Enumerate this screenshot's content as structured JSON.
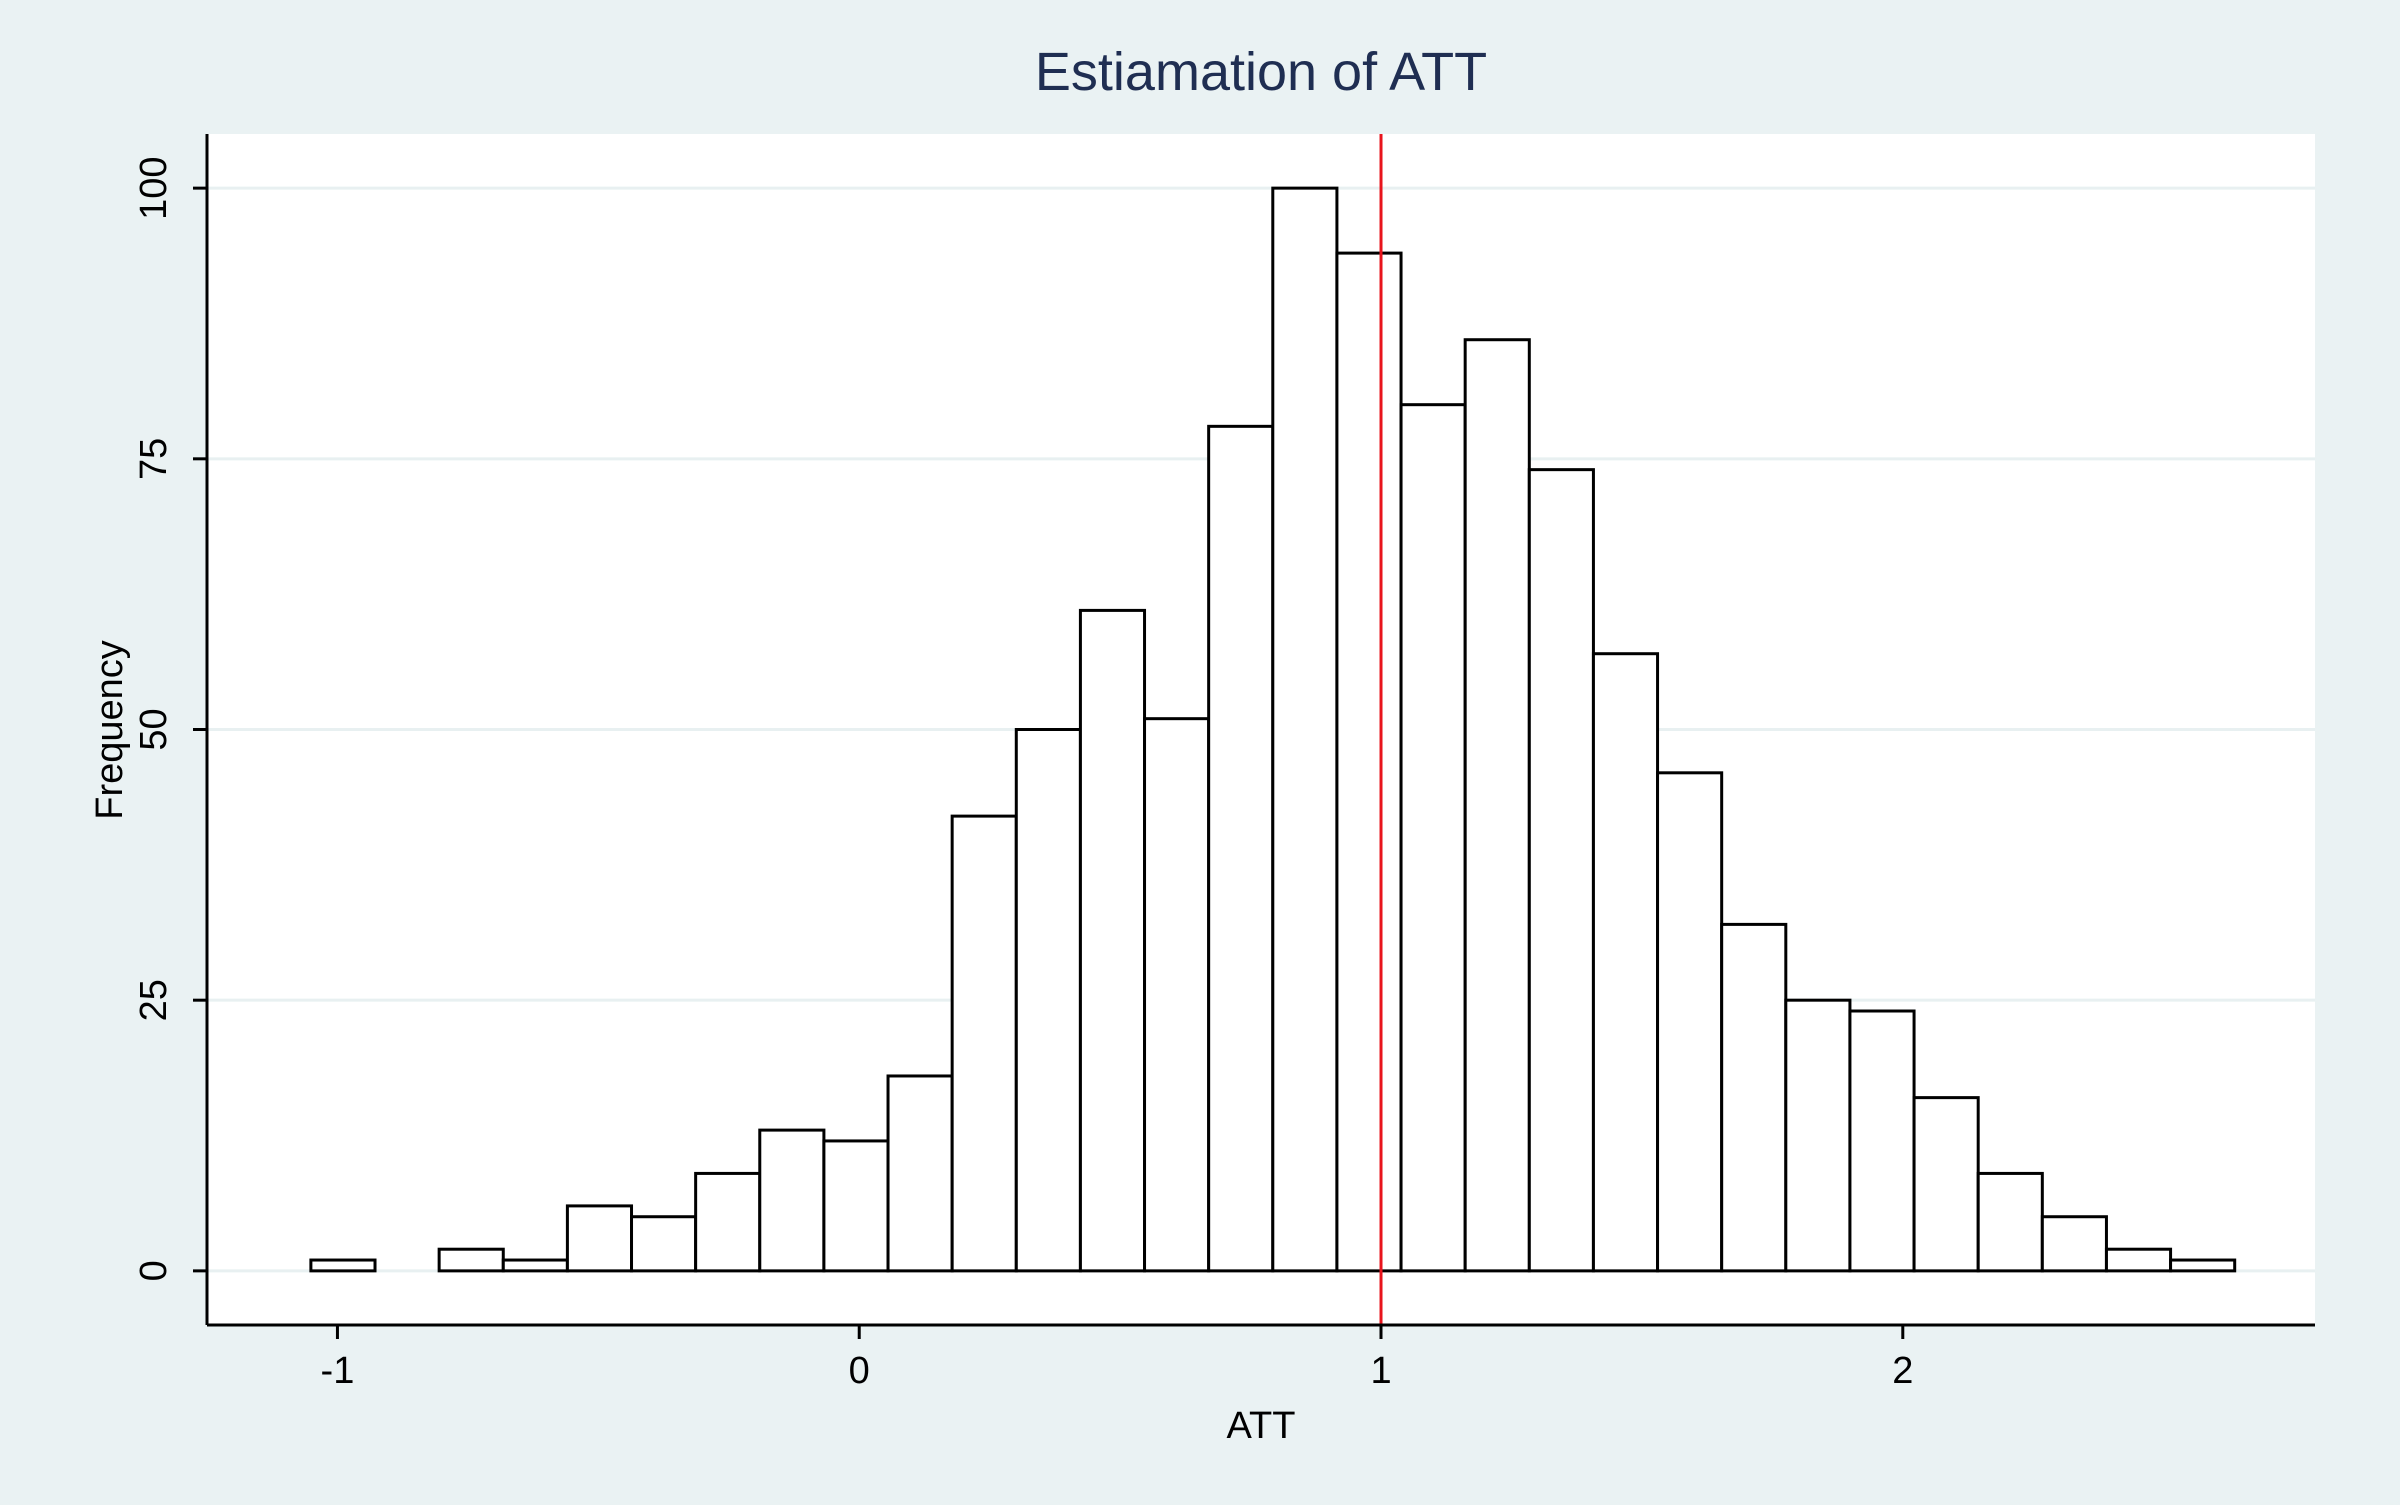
{
  "chart_data": {
    "type": "bar",
    "title": "Estiamation of ATT",
    "xlabel": "ATT",
    "ylabel": "Frequency",
    "xlim": [
      -1.25,
      2.79
    ],
    "ylim": [
      -5,
      105
    ],
    "xticks": [
      -1,
      0,
      1,
      2
    ],
    "xtick_labels": [
      "-1",
      "0",
      "1",
      "2"
    ],
    "yticks": [
      0,
      25,
      50,
      75,
      100
    ],
    "ytick_labels": [
      "0",
      "25",
      "50",
      "75",
      "100"
    ],
    "bin_start": -1.0509,
    "bin_width": 0.1229,
    "values": [
      1,
      0,
      2,
      1,
      6,
      5,
      9,
      13,
      12,
      18,
      42,
      50,
      61,
      51,
      78,
      100,
      94,
      80,
      86,
      74,
      57,
      46,
      32,
      25,
      24,
      16,
      9,
      5,
      2,
      1
    ],
    "reference_line": {
      "x": 1,
      "color": "#e8141c"
    },
    "grid": "horizontal",
    "legend": "none",
    "colors": {
      "background": "#eaf2f3",
      "plot_area": "#ffffff",
      "gridline": "#e8f0f1",
      "bar_fill": "#ffffff",
      "bar_edge": "#000000",
      "title": "#1f2e52",
      "text": "#000000"
    }
  }
}
